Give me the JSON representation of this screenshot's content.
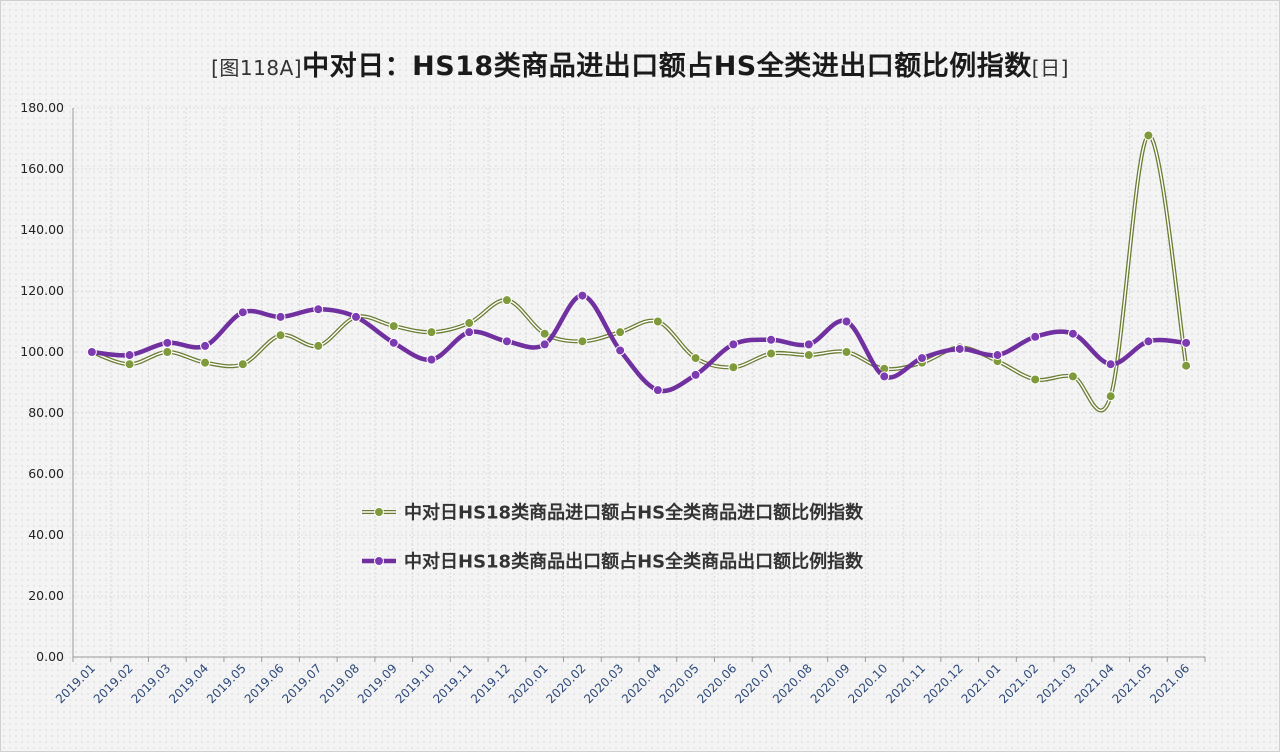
{
  "title": {
    "prefix": "[图118A]",
    "main": "中对日：HS18类商品进出口额占HS全类进出口额比例指数",
    "suffix": "[日]"
  },
  "colors": {
    "import": "#6b7d33",
    "import_marker": "#7f9a3a",
    "export": "#7030a0",
    "export_marker": "#7c3bb0"
  },
  "chart_data": {
    "type": "line",
    "ylim": [
      0,
      180
    ],
    "y_ticks": [
      "0.00",
      "20.00",
      "40.00",
      "60.00",
      "80.00",
      "100.00",
      "120.00",
      "140.00",
      "160.00",
      "180.00"
    ],
    "categories": [
      "2019.01",
      "2019.02",
      "2019.03",
      "2019.04",
      "2019.05",
      "2019.06",
      "2019.07",
      "2019.08",
      "2019.09",
      "2019.10",
      "2019.11",
      "2019.12",
      "2020.01",
      "2020.02",
      "2020.03",
      "2020.04",
      "2020.05",
      "2020.06",
      "2020.07",
      "2020.08",
      "2020.09",
      "2020.10",
      "2020.11",
      "2020.12",
      "2021.01",
      "2021.02",
      "2021.03",
      "2021.04",
      "2021.05",
      "2021.06"
    ],
    "series": [
      {
        "name": "中对日HS18类商品进口额占HS全类商品进口额比例指数",
        "style": "double",
        "values": [
          100,
          96,
          100,
          96.5,
          96,
          105.5,
          102,
          111.5,
          108.5,
          106.5,
          109.5,
          117,
          106,
          103.5,
          106.5,
          110,
          98,
          95,
          99.5,
          99,
          100,
          94.5,
          96.5,
          101.5,
          97,
          91,
          92,
          85.5,
          171,
          95.5
        ]
      },
      {
        "name": "中对日HS18类商品出口额占HS全类商品出口额比例指数",
        "style": "thick",
        "values": [
          100,
          99,
          103,
          102,
          113,
          111.5,
          114,
          111.5,
          103,
          97.5,
          106.5,
          103.5,
          102.5,
          118.5,
          100.5,
          87.5,
          92.5,
          102.5,
          104,
          102.5,
          110,
          92,
          98,
          101,
          99,
          105,
          106,
          96,
          103.5,
          103
        ]
      }
    ],
    "grid": true,
    "legend_position": "center"
  }
}
